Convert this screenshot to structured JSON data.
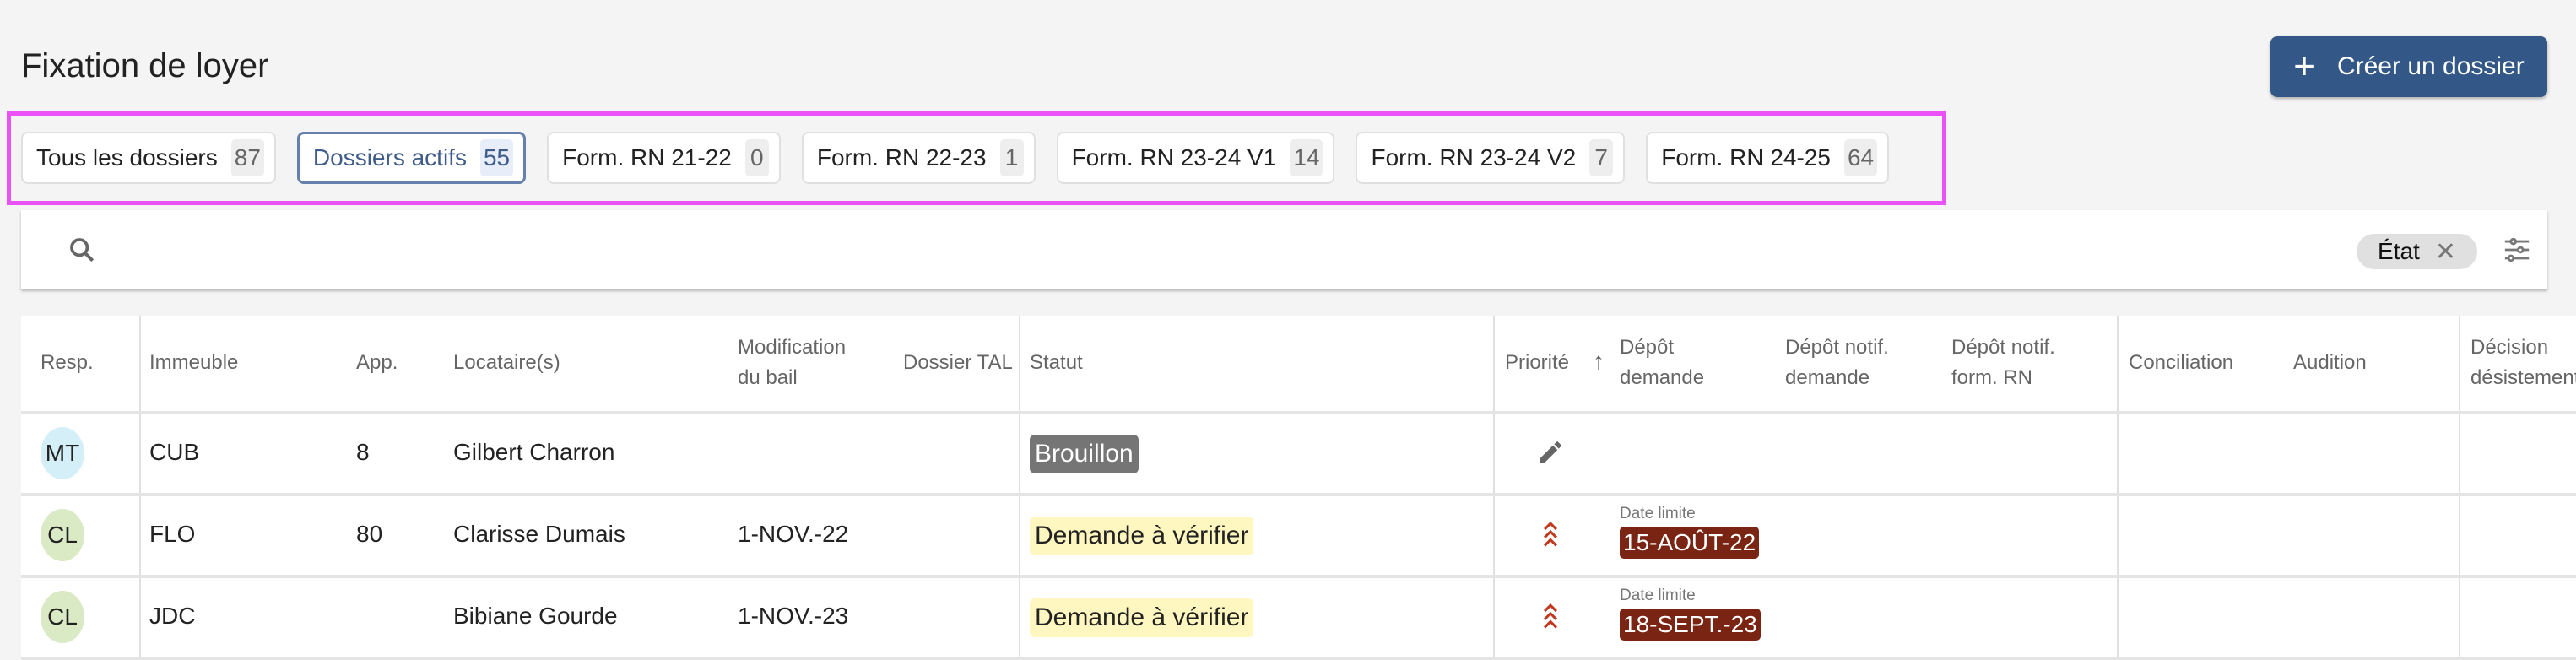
{
  "header": {
    "title": "Fixation de loyer",
    "create_label": "Créer un dossier",
    "create_icon": "plus-icon"
  },
  "tabs": [
    {
      "label": "Tous les dossiers",
      "count": "87",
      "active": false
    },
    {
      "label": "Dossiers actifs",
      "count": "55",
      "active": true
    },
    {
      "label": "Form. RN 21-22",
      "count": "0",
      "active": false
    },
    {
      "label": "Form. RN 22-23",
      "count": "1",
      "active": false
    },
    {
      "label": "Form. RN 23-24 V1",
      "count": "14",
      "active": false
    },
    {
      "label": "Form. RN 23-24 V2",
      "count": "7",
      "active": false
    },
    {
      "label": "Form. RN 24-25",
      "count": "64",
      "active": false
    }
  ],
  "search": {
    "value": "",
    "placeholder": "",
    "filter_chip": "État"
  },
  "table": {
    "columns": [
      "Resp.",
      "Immeuble",
      "App.",
      "Locataire(s)",
      "Modification du bail",
      "Dossier TAL",
      "Statut",
      "Priorité",
      "Dépôt demande",
      "Dépôt notif. demande",
      "Dépôt notif. form. RN",
      "Conciliation",
      "Audition",
      "Décision désistement"
    ],
    "sort": {
      "column": "Priorité",
      "direction": "ascending"
    },
    "rows": [
      {
        "resp": "MT",
        "resp_color": "#d5eff8",
        "immeuble": "CUB",
        "app": "8",
        "locataire": "Gilbert Charron",
        "modification": "",
        "statut": "Brouillon",
        "statut_style": "draft",
        "priorite_icon": "pencil-icon",
        "date_label": "",
        "date": ""
      },
      {
        "resp": "CL",
        "resp_color": "#d9eac5",
        "immeuble": "FLO",
        "app": "80",
        "locataire": "Clarisse Dumais",
        "modification": "1-NOV.-22",
        "statut": "Demande à vérifier",
        "statut_style": "verify",
        "priorite_icon": "triple-chevron-up-icon",
        "date_label": "Date limite",
        "date": "15-AOÛT-22"
      },
      {
        "resp": "CL",
        "resp_color": "#d9eac5",
        "immeuble": "JDC",
        "app": "",
        "locataire": "Bibiane Gourde",
        "modification": "1-NOV.-23",
        "statut": "Demande à vérifier",
        "statut_style": "verify",
        "priorite_icon": "triple-chevron-up-icon",
        "date_label": "Date limite",
        "date": "18-SEPT.-23"
      }
    ]
  },
  "colors": {
    "primary": "#335786",
    "highlight": "#ea52f8",
    "deadline": "#7a2513",
    "verify_bg": "#fff7bf",
    "draft_bg": "#757575",
    "priority_high": "#c0391f"
  }
}
